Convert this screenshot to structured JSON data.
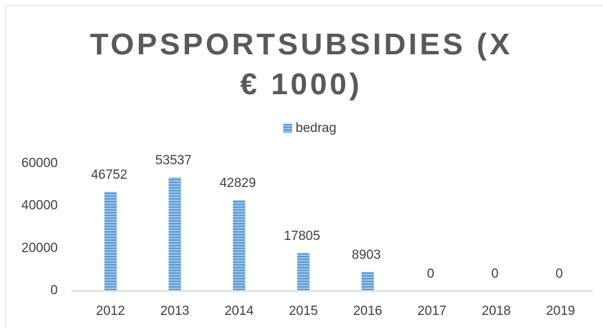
{
  "chart_data": {
    "type": "bar",
    "title": "TOPSPORTSUBSIDIES (X € 1000)",
    "legend": "bedrag",
    "legend_position": "top",
    "categories": [
      "2012",
      "2013",
      "2014",
      "2015",
      "2016",
      "2017",
      "2018",
      "2019"
    ],
    "values": [
      46752,
      53537,
      42829,
      17805,
      8903,
      0,
      0,
      0
    ],
    "color": "#5b9bd5",
    "ylim": [
      0,
      60000
    ],
    "yticks": [
      0,
      20000,
      40000,
      60000
    ],
    "grid": false
  }
}
